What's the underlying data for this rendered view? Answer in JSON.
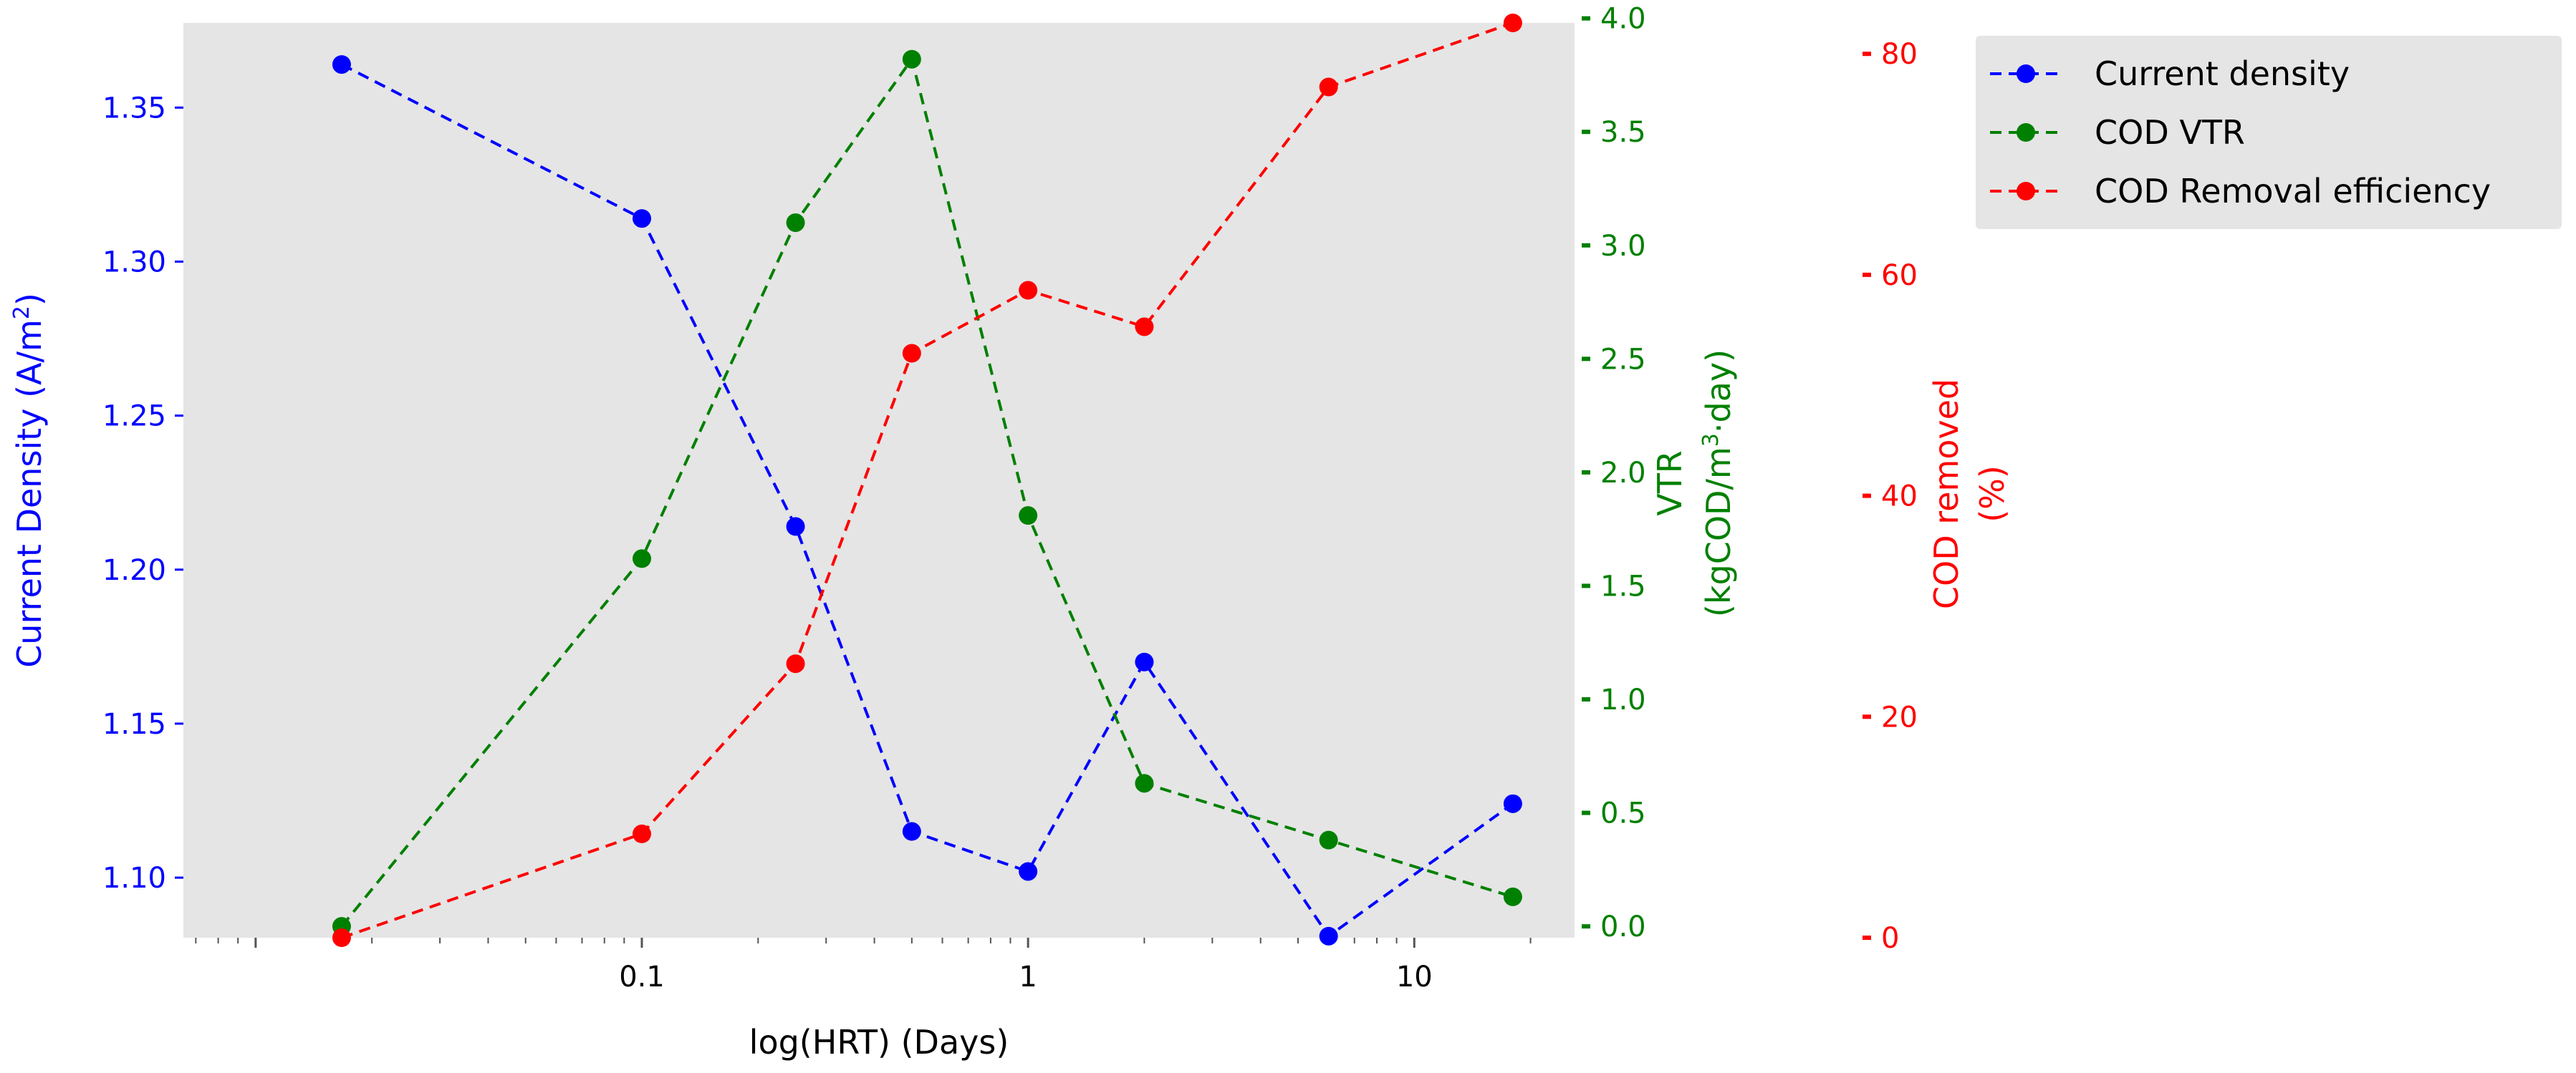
{
  "chart_data": {
    "type": "line",
    "title": "",
    "xlabel": "log(HRT) (Days)",
    "xscale": "log",
    "xlim": [
      0.0065,
      26
    ],
    "xticks": [
      {
        "value": 0.1,
        "label": "0.1"
      },
      {
        "value": 1,
        "label": "1"
      },
      {
        "value": 10,
        "label": "10"
      }
    ],
    "x": [
      0.0167,
      0.1,
      0.25,
      0.5,
      1,
      2,
      6,
      18
    ],
    "grid": false,
    "background": "#e5e5e5",
    "legend_position": "outside-right-top",
    "series": [
      {
        "name": "Current density",
        "axis": "left",
        "color": "#0000ff",
        "values": [
          1.364,
          1.314,
          1.214,
          1.115,
          1.102,
          1.17,
          1.081,
          1.124
        ]
      },
      {
        "name": "COD VTR",
        "axis": "right1",
        "color": "#008000",
        "values": [
          0.0,
          1.62,
          3.1,
          3.82,
          1.81,
          0.63,
          0.38,
          0.13
        ]
      },
      {
        "name": "COD Removal efficiency",
        "axis": "right2",
        "color": "#ff0000",
        "values": [
          0.0,
          9.4,
          24.8,
          52.9,
          58.6,
          55.3,
          77.0,
          82.8
        ]
      }
    ],
    "axes": {
      "left": {
        "label_main": "Current Density (A/m",
        "label_sup": "2",
        "label_close": ")",
        "color": "#0000ff",
        "ylim": [
          1.0805,
          1.3775
        ],
        "ticks": [
          1.1,
          1.15,
          1.2,
          1.25,
          1.3,
          1.35
        ],
        "tick_labels": [
          "1.10",
          "1.15",
          "1.20",
          "1.25",
          "1.30",
          "1.35"
        ]
      },
      "right1": {
        "label_line1": "VTR",
        "label_line2_pre": "(kgCOD/m",
        "label_line2_sup": "3",
        "label_line2_post": "·day)",
        "color": "#008000",
        "ylim": [
          -0.05,
          3.98
        ],
        "ticks": [
          0.0,
          0.5,
          1.0,
          1.5,
          2.0,
          2.5,
          3.0,
          3.5,
          4.0
        ],
        "tick_labels": [
          "0.0",
          "0.5",
          "1.0",
          "1.5",
          "2.0",
          "2.5",
          "3.0",
          "3.5",
          "4.0"
        ]
      },
      "right2": {
        "label_line1": "COD removed",
        "label_line2": "(%)",
        "color": "#ff0000",
        "ylim": [
          0,
          82.8
        ],
        "ticks": [
          0,
          20,
          40,
          60,
          80
        ],
        "tick_labels": [
          "0",
          "20",
          "40",
          "60",
          "80"
        ]
      }
    }
  }
}
